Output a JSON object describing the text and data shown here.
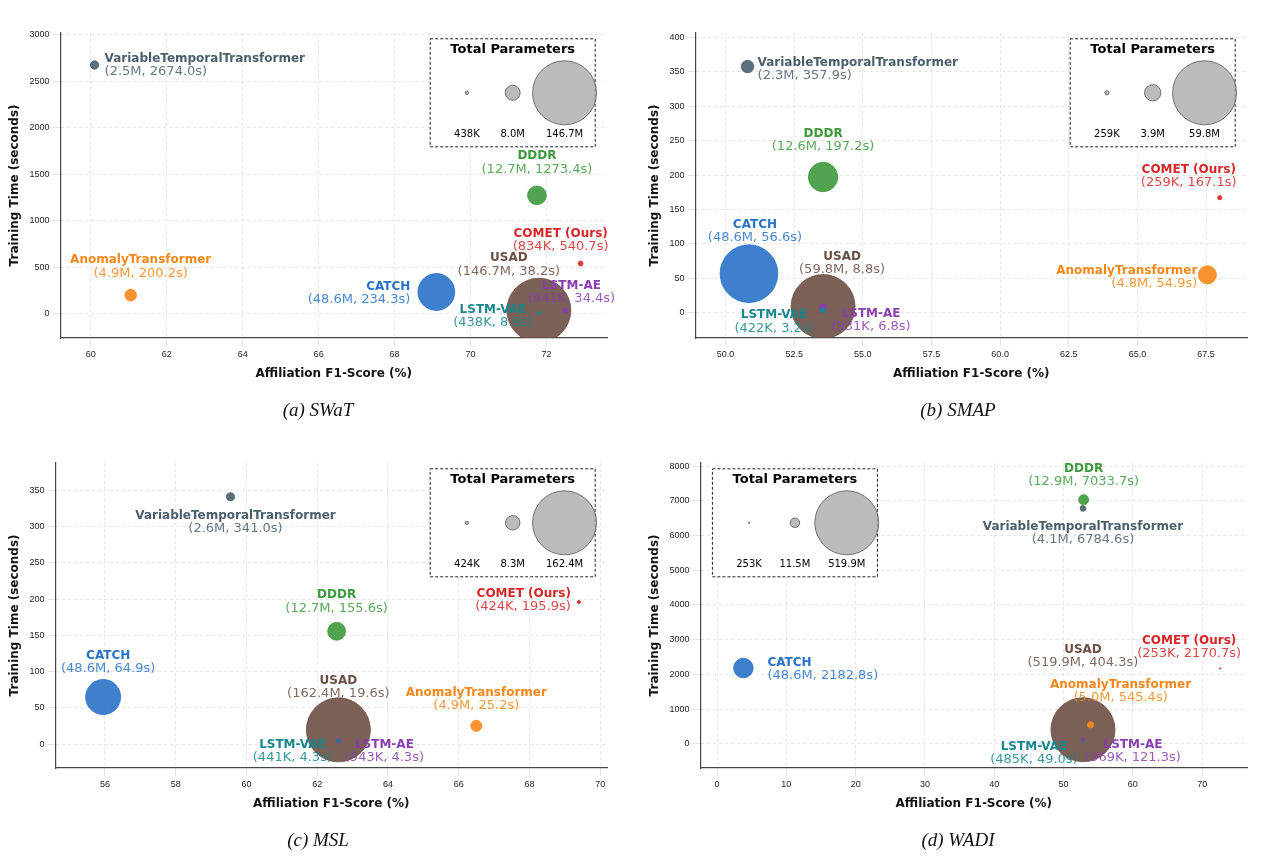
{
  "chart_data": [
    {
      "type": "bubble",
      "title": "(a) SWaT",
      "xlabel": "Affiliation F1-Score (%)",
      "ylabel": "Training Time (seconds)",
      "legend_title": "Total Parameters",
      "grid": true,
      "size_legend": [
        {
          "value": 0.438,
          "label": "438K"
        },
        {
          "value": 8.0,
          "label": "8.0M"
        },
        {
          "value": 146.7,
          "label": "146.7M"
        }
      ],
      "xlim": [
        59.2,
        73.6
      ],
      "xticks": [
        60,
        62,
        64,
        66,
        68,
        70,
        72
      ],
      "ylim": [
        -260,
        3020
      ],
      "yticks": [
        0,
        500,
        1000,
        1500,
        2000,
        2500,
        3000
      ],
      "series": [
        {
          "name": "USAD",
          "color": "#6b4f44",
          "x": [
            71.8
          ],
          "values": [
            38.2
          ],
          "sizes": [
            146.7
          ],
          "value_labels": [
            "(146.7M, 38.2s)"
          ]
        },
        {
          "name": "DDDR",
          "color": "#3d9a3d",
          "x": [
            71.75
          ],
          "values": [
            1273.4
          ],
          "sizes": [
            12.7
          ],
          "value_labels": [
            "(12.7M, 1273.4s)"
          ]
        },
        {
          "name": "VariableTemporalTransformer",
          "color": "#4a5f6b",
          "x": [
            60.1
          ],
          "values": [
            2674.0
          ],
          "sizes": [
            2.5
          ],
          "value_labels": [
            "(2.5M, 2674.0s)"
          ]
        },
        {
          "name": "CATCH",
          "color": "#2a72c8",
          "x": [
            69.1
          ],
          "values": [
            234.3
          ],
          "sizes": [
            48.6
          ],
          "value_labels": [
            "(48.6M, 234.3s)"
          ]
        },
        {
          "name": "AnomalyTransformer",
          "color": "#f7871a",
          "x": [
            61.05
          ],
          "values": [
            200.2
          ],
          "sizes": [
            4.9
          ],
          "value_labels": [
            "(4.9M, 200.2s)"
          ]
        },
        {
          "name": "LSTM-AE",
          "color": "#8a3fb0",
          "x": [
            72.5
          ],
          "values": [
            34.4
          ],
          "sizes": [
            0.941
          ],
          "value_labels": [
            "(941K, 34.4s)"
          ]
        },
        {
          "name": "LSTM-VAE",
          "color": "#17868a",
          "x": [
            71.8
          ],
          "values": [
            8.8
          ],
          "sizes": [
            0.438
          ],
          "value_labels": [
            "(438K, 8.8s)"
          ]
        },
        {
          "name": "COMET (Ours)",
          "color": "#d62728",
          "x": [
            72.9
          ],
          "values": [
            540.7
          ],
          "sizes": [
            0.834
          ],
          "value_labels": [
            "(834K, 540.7s)"
          ]
        }
      ]
    },
    {
      "type": "bubble",
      "title": "(b) SMAP",
      "xlabel": "Affiliation F1-Score (%)",
      "ylabel": "Training Time (seconds)",
      "legend_title": "Total Parameters",
      "grid": true,
      "size_legend": [
        {
          "value": 0.259,
          "label": "259K"
        },
        {
          "value": 3.9,
          "label": "3.9M"
        },
        {
          "value": 59.8,
          "label": "59.8M"
        }
      ],
      "xlim": [
        48.9,
        69.0
      ],
      "xticks": [
        {
          "value": 50,
          "label": "50.0"
        },
        52.5,
        {
          "value": 55,
          "label": "55.0"
        },
        57.5,
        {
          "value": 60,
          "label": "60.0"
        },
        62.5,
        {
          "value": 65,
          "label": "65.0"
        },
        67.5
      ],
      "ylim": [
        -37,
        407
      ],
      "yticks": [
        0,
        50,
        100,
        150,
        200,
        250,
        300,
        350,
        400
      ],
      "series": [
        {
          "name": "USAD",
          "color": "#6b4f44",
          "x": [
            53.55
          ],
          "values": [
            8.8
          ],
          "sizes": [
            59.8
          ],
          "value_labels": [
            "(59.8M, 8.8s)"
          ]
        },
        {
          "name": "DDDR",
          "color": "#3d9a3d",
          "x": [
            53.55
          ],
          "values": [
            197.2
          ],
          "sizes": [
            12.6
          ],
          "value_labels": [
            "(12.6M, 197.2s)"
          ]
        },
        {
          "name": "VariableTemporalTransformer",
          "color": "#4a5f6b",
          "x": [
            50.8
          ],
          "values": [
            357.9
          ],
          "sizes": [
            2.3
          ],
          "value_labels": [
            "(2.3M, 357.9s)"
          ]
        },
        {
          "name": "CATCH",
          "color": "#2a72c8",
          "x": [
            50.85
          ],
          "values": [
            56.6
          ],
          "sizes": [
            48.6
          ],
          "value_labels": [
            "(48.6M, 56.6s)"
          ]
        },
        {
          "name": "AnomalyTransformer",
          "color": "#f7871a",
          "x": [
            67.55
          ],
          "values": [
            54.9
          ],
          "sizes": [
            4.8
          ],
          "value_labels": [
            "(4.8M, 54.9s)"
          ]
        },
        {
          "name": "LSTM-AE",
          "color": "#8a3fb0",
          "x": [
            53.55
          ],
          "values": [
            6.8
          ],
          "sizes": [
            0.931
          ],
          "value_labels": [
            "(931K, 6.8s)"
          ]
        },
        {
          "name": "LSTM-VAE",
          "color": "#17868a",
          "x": [
            53.55
          ],
          "values": [
            3.2
          ],
          "sizes": [
            0.422
          ],
          "value_labels": [
            "(422K, 3.2s)"
          ]
        },
        {
          "name": "COMET (Ours)",
          "color": "#d62728",
          "x": [
            68.0
          ],
          "values": [
            167.1
          ],
          "sizes": [
            0.259
          ],
          "value_labels": [
            "(259K, 167.1s)"
          ]
        }
      ]
    },
    {
      "type": "bubble",
      "title": "(c) MSL",
      "xlabel": "Affiliation F1-Score (%)",
      "ylabel": "Training Time (seconds)",
      "legend_title": "Total Parameters",
      "grid": true,
      "size_legend": [
        {
          "value": 0.424,
          "label": "424K"
        },
        {
          "value": 8.3,
          "label": "8.3M"
        },
        {
          "value": 162.4,
          "label": "162.4M"
        }
      ],
      "xlim": [
        54.6,
        70.2
      ],
      "xticks": [
        56,
        58,
        60,
        62,
        64,
        66,
        68,
        70
      ],
      "ylim": [
        -33,
        388
      ],
      "yticks": [
        0,
        50,
        100,
        150,
        200,
        250,
        300,
        350
      ],
      "series": [
        {
          "name": "USAD",
          "color": "#6b4f44",
          "x": [
            62.6
          ],
          "values": [
            19.6
          ],
          "sizes": [
            162.4
          ],
          "value_labels": [
            "(162.4M, 19.6s)"
          ]
        },
        {
          "name": "DDDR",
          "color": "#3d9a3d",
          "x": [
            62.55
          ],
          "values": [
            155.6
          ],
          "sizes": [
            12.7
          ],
          "value_labels": [
            "(12.7M, 155.6s)"
          ]
        },
        {
          "name": "VariableTemporalTransformer",
          "color": "#4a5f6b",
          "x": [
            59.55
          ],
          "values": [
            341.0
          ],
          "sizes": [
            2.6
          ],
          "value_labels": [
            "(2.6M, 341.0s)"
          ]
        },
        {
          "name": "CATCH",
          "color": "#2a72c8",
          "x": [
            55.95
          ],
          "values": [
            64.9
          ],
          "sizes": [
            48.6
          ],
          "value_labels": [
            "(48.6M, 64.9s)"
          ]
        },
        {
          "name": "AnomalyTransformer",
          "color": "#f7871a",
          "x": [
            66.5
          ],
          "values": [
            25.2
          ],
          "sizes": [
            4.9
          ],
          "value_labels": [
            "(4.9M, 25.2s)"
          ]
        },
        {
          "name": "LSTM-AE",
          "color": "#8a3fb0",
          "x": [
            62.6
          ],
          "values": [
            4.3
          ],
          "sizes": [
            0.943
          ],
          "value_labels": [
            "(943K, 4.3s)"
          ]
        },
        {
          "name": "LSTM-VAE",
          "color": "#17868a",
          "x": [
            62.6
          ],
          "values": [
            4.3
          ],
          "sizes": [
            0.441
          ],
          "value_labels": [
            "(441K, 4.3s)"
          ]
        },
        {
          "name": "COMET (Ours)",
          "color": "#d62728",
          "x": [
            69.4
          ],
          "values": [
            195.9
          ],
          "sizes": [
            0.424
          ],
          "value_labels": [
            "(424K, 195.9s)"
          ]
        }
      ]
    },
    {
      "type": "bubble",
      "title": "(d) WADI",
      "xlabel": "Affiliation F1-Score (%)",
      "ylabel": "Training Time (seconds)",
      "legend_title": "Total Parameters",
      "grid": true,
      "size_legend": [
        {
          "value": 0.253,
          "label": "253K"
        },
        {
          "value": 11.5,
          "label": "11.5M"
        },
        {
          "value": 519.9,
          "label": "519.9M"
        }
      ],
      "xlim": [
        -2.4,
        76.5
      ],
      "xticks": [
        0,
        10,
        20,
        30,
        40,
        50,
        60,
        70
      ],
      "ylim": [
        -700,
        8100
      ],
      "yticks": [
        0,
        1000,
        2000,
        3000,
        4000,
        5000,
        6000,
        7000,
        8000
      ],
      "series": [
        {
          "name": "USAD",
          "color": "#6b4f44",
          "x": [
            52.8
          ],
          "values": [
            404.3
          ],
          "sizes": [
            519.9
          ],
          "value_labels": [
            "(519.9M, 404.3s)"
          ]
        },
        {
          "name": "DDDR",
          "color": "#3d9a3d",
          "x": [
            52.9
          ],
          "values": [
            7033.7
          ],
          "sizes": [
            12.9
          ],
          "value_labels": [
            "(12.9M, 7033.7s)"
          ]
        },
        {
          "name": "VariableTemporalTransformer",
          "color": "#4a5f6b",
          "x": [
            52.8
          ],
          "values": [
            6784.6
          ],
          "sizes": [
            4.1
          ],
          "value_labels": [
            "(4.1M, 6784.6s)"
          ]
        },
        {
          "name": "CATCH",
          "color": "#2a72c8",
          "x": [
            3.8
          ],
          "values": [
            2182.8
          ],
          "sizes": [
            48.6
          ],
          "value_labels": [
            "(48.6M, 2182.8s)"
          ]
        },
        {
          "name": "AnomalyTransformer",
          "color": "#f7871a",
          "x": [
            53.9
          ],
          "values": [
            545.4
          ],
          "sizes": [
            5.0
          ],
          "value_labels": [
            "(5.0M, 545.4s)"
          ]
        },
        {
          "name": "LSTM-AE",
          "color": "#8a3fb0",
          "x": [
            52.8
          ],
          "values": [
            121.3
          ],
          "sizes": [
            0.969
          ],
          "value_labels": [
            "(969K, 121.3s)"
          ]
        },
        {
          "name": "LSTM-VAE",
          "color": "#17868a",
          "x": [
            52.8
          ],
          "values": [
            49.0
          ],
          "sizes": [
            0.485
          ],
          "value_labels": [
            "(485K, 49.0s)"
          ]
        },
        {
          "name": "COMET (Ours)",
          "color": "#d62728",
          "x": [
            72.6
          ],
          "values": [
            2170.7
          ],
          "sizes": [
            0.253
          ],
          "value_labels": [
            "(253K, 2170.7s)"
          ]
        }
      ]
    }
  ]
}
